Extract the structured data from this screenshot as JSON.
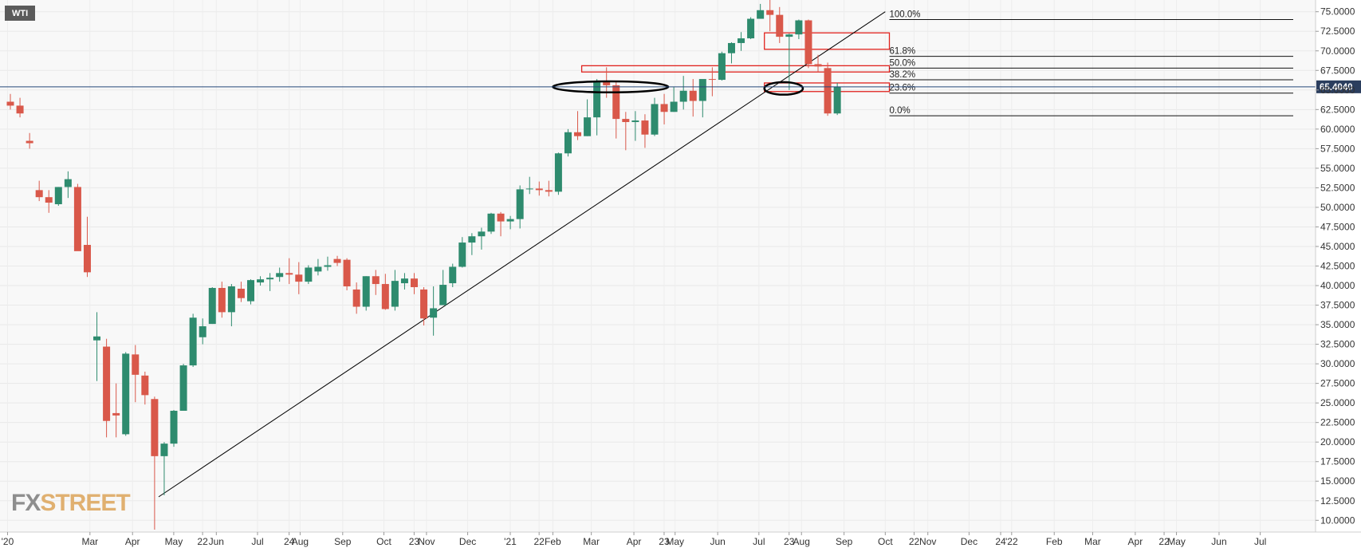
{
  "symbol": "WTI",
  "watermark": {
    "part1": "FX",
    "part2": "STREET"
  },
  "colors": {
    "up": "#2e8b6e",
    "down": "#d9584a",
    "zone": "#e0221d",
    "trend": "#000000",
    "price_line": "#24477a",
    "last_price_bg": "#2b3e5e"
  },
  "chart_data": {
    "type": "candlestick",
    "title": "",
    "interval": "weekly",
    "y_axis": {
      "min": 8.5,
      "max": 76.5,
      "ticks": [
        10,
        12.5,
        15,
        17.5,
        20,
        22.5,
        25,
        27.5,
        30,
        32.5,
        35,
        37.5,
        40,
        42.5,
        45,
        47.5,
        50,
        52.5,
        55,
        57.5,
        60,
        62.5,
        65,
        67.5,
        70,
        72.5,
        75
      ],
      "tick_labels": [
        "10.0000",
        "12.5000",
        "15.0000",
        "17.5000",
        "20.0000",
        "22.5000",
        "25.0000",
        "27.5000",
        "30.0000",
        "32.5000",
        "35.0000",
        "37.5000",
        "40.0000",
        "42.5000",
        "45.0000",
        "47.5000",
        "50.0000",
        "52.5000",
        "55.0000",
        "57.5000",
        "60.0000",
        "62.5000",
        "65.0000",
        "67.5000",
        "70.0000",
        "72.5000",
        "75.0000"
      ]
    },
    "x_axis": {
      "start": "2019-12-30",
      "end": "2022-07-25",
      "ticks": [
        {
          "date": "2020-01-01",
          "label": "'20"
        },
        {
          "date": "2020-03-01",
          "label": "Mar"
        },
        {
          "date": "2020-04-01",
          "label": "Apr"
        },
        {
          "date": "2020-05-01",
          "label": "May"
        },
        {
          "date": "2020-05-22",
          "label": "22"
        },
        {
          "date": "2020-06-01",
          "label": "Jun"
        },
        {
          "date": "2020-07-01",
          "label": "Jul"
        },
        {
          "date": "2020-07-24",
          "label": "24"
        },
        {
          "date": "2020-08-01",
          "label": "Aug"
        },
        {
          "date": "2020-09-01",
          "label": "Sep"
        },
        {
          "date": "2020-10-01",
          "label": "Oct"
        },
        {
          "date": "2020-10-23",
          "label": "23"
        },
        {
          "date": "2020-11-01",
          "label": "Nov"
        },
        {
          "date": "2020-12-01",
          "label": "Dec"
        },
        {
          "date": "2021-01-01",
          "label": "'21"
        },
        {
          "date": "2021-01-22",
          "label": "22"
        },
        {
          "date": "2021-02-01",
          "label": "Feb"
        },
        {
          "date": "2021-03-01",
          "label": "Mar"
        },
        {
          "date": "2021-04-01",
          "label": "Apr"
        },
        {
          "date": "2021-04-23",
          "label": "23"
        },
        {
          "date": "2021-05-01",
          "label": "May"
        },
        {
          "date": "2021-06-01",
          "label": "Jun"
        },
        {
          "date": "2021-07-01",
          "label": "Jul"
        },
        {
          "date": "2021-07-23",
          "label": "23"
        },
        {
          "date": "2021-08-01",
          "label": "Aug"
        },
        {
          "date": "2021-09-01",
          "label": "Sep"
        },
        {
          "date": "2021-10-01",
          "label": "Oct"
        },
        {
          "date": "2021-10-22",
          "label": "22"
        },
        {
          "date": "2021-11-01",
          "label": "Nov"
        },
        {
          "date": "2021-12-01",
          "label": "Dec"
        },
        {
          "date": "2021-12-24",
          "label": "24"
        },
        {
          "date": "2022-01-01",
          "label": "'22"
        },
        {
          "date": "2022-02-01",
          "label": "Feb"
        },
        {
          "date": "2022-03-01",
          "label": "Mar"
        },
        {
          "date": "2022-04-01",
          "label": "Apr"
        },
        {
          "date": "2022-04-22",
          "label": "22"
        },
        {
          "date": "2022-05-01",
          "label": "May"
        },
        {
          "date": "2022-06-01",
          "label": "Jun"
        },
        {
          "date": "2022-07-01",
          "label": "Jul"
        }
      ]
    },
    "candles": [
      {
        "date": "2019-12-30",
        "o": 63.5,
        "h": 64.5,
        "l": 62.5,
        "c": 63.0
      },
      {
        "date": "2020-01-06",
        "o": 63.0,
        "h": 64.0,
        "l": 61.5,
        "c": 62.0
      },
      {
        "date": "2020-01-13",
        "o": 58.5,
        "h": 59.5,
        "l": 57.5,
        "c": 58.2
      },
      {
        "date": "2020-01-20",
        "o": 52.2,
        "h": 53.4,
        "l": 50.8,
        "c": 51.3
      },
      {
        "date": "2020-01-27",
        "o": 51.3,
        "h": 52.2,
        "l": 49.3,
        "c": 50.6
      },
      {
        "date": "2020-02-03",
        "o": 50.4,
        "h": 52.6,
        "l": 50.2,
        "c": 52.6
      },
      {
        "date": "2020-02-10",
        "o": 52.6,
        "h": 54.6,
        "l": 51.2,
        "c": 53.6
      },
      {
        "date": "2020-02-17",
        "o": 52.6,
        "h": 53.0,
        "l": 44.6,
        "c": 44.4
      },
      {
        "date": "2020-02-24",
        "o": 45.2,
        "h": 48.8,
        "l": 41.1,
        "c": 41.7
      },
      {
        "date": "2020-03-02",
        "o": 33.0,
        "h": 36.6,
        "l": 27.8,
        "c": 33.5
      },
      {
        "date": "2020-03-09",
        "o": 32.2,
        "h": 33.2,
        "l": 20.6,
        "c": 22.7
      },
      {
        "date": "2020-03-16",
        "o": 23.7,
        "h": 27.5,
        "l": 20.6,
        "c": 23.4
      },
      {
        "date": "2020-03-23",
        "o": 21.0,
        "h": 31.5,
        "l": 20.8,
        "c": 31.3
      },
      {
        "date": "2020-03-30",
        "o": 31.2,
        "h": 32.4,
        "l": 25.1,
        "c": 28.6
      },
      {
        "date": "2020-04-06",
        "o": 28.5,
        "h": 29.0,
        "l": 24.8,
        "c": 26.0
      },
      {
        "date": "2020-04-13",
        "o": 25.5,
        "h": 25.8,
        "l": 8.8,
        "c": 18.2
      },
      {
        "date": "2020-04-20",
        "o": 18.2,
        "h": 20.0,
        "l": 13.2,
        "c": 19.8
      },
      {
        "date": "2020-04-27",
        "o": 19.8,
        "h": 24.1,
        "l": 19.4,
        "c": 24.0
      },
      {
        "date": "2020-05-04",
        "o": 24.0,
        "h": 30.0,
        "l": 24.5,
        "c": 29.8
      },
      {
        "date": "2020-05-11",
        "o": 29.8,
        "h": 36.4,
        "l": 29.6,
        "c": 35.9
      },
      {
        "date": "2020-05-18",
        "o": 33.4,
        "h": 35.8,
        "l": 32.5,
        "c": 34.8
      },
      {
        "date": "2020-05-25",
        "o": 35.1,
        "h": 39.8,
        "l": 35.1,
        "c": 39.7
      },
      {
        "date": "2020-06-01",
        "o": 39.7,
        "h": 40.5,
        "l": 35.9,
        "c": 36.6
      },
      {
        "date": "2020-06-08",
        "o": 36.6,
        "h": 40.2,
        "l": 34.8,
        "c": 39.9
      },
      {
        "date": "2020-06-15",
        "o": 39.6,
        "h": 40.5,
        "l": 37.9,
        "c": 38.4
      },
      {
        "date": "2020-06-22",
        "o": 38.0,
        "h": 40.8,
        "l": 37.6,
        "c": 40.7
      },
      {
        "date": "2020-06-29",
        "o": 40.4,
        "h": 41.2,
        "l": 40.0,
        "c": 40.8
      },
      {
        "date": "2020-07-06",
        "o": 40.8,
        "h": 41.6,
        "l": 39.3,
        "c": 41.0
      },
      {
        "date": "2020-07-13",
        "o": 41.1,
        "h": 42.3,
        "l": 40.5,
        "c": 41.6
      },
      {
        "date": "2020-07-20",
        "o": 41.6,
        "h": 43.5,
        "l": 40.2,
        "c": 41.4
      },
      {
        "date": "2020-07-27",
        "o": 41.4,
        "h": 43.0,
        "l": 38.9,
        "c": 40.5
      },
      {
        "date": "2020-08-03",
        "o": 40.5,
        "h": 42.6,
        "l": 40.2,
        "c": 42.3
      },
      {
        "date": "2020-08-10",
        "o": 41.8,
        "h": 43.4,
        "l": 41.3,
        "c": 42.4
      },
      {
        "date": "2020-08-17",
        "o": 42.4,
        "h": 43.7,
        "l": 41.9,
        "c": 42.6
      },
      {
        "date": "2020-08-24",
        "o": 43.4,
        "h": 43.8,
        "l": 42.5,
        "c": 42.9
      },
      {
        "date": "2020-08-31",
        "o": 43.3,
        "h": 43.5,
        "l": 39.4,
        "c": 39.9
      },
      {
        "date": "2020-09-07",
        "o": 39.5,
        "h": 40.4,
        "l": 36.4,
        "c": 37.3
      },
      {
        "date": "2020-09-14",
        "o": 37.3,
        "h": 41.2,
        "l": 36.8,
        "c": 41.2
      },
      {
        "date": "2020-09-21",
        "o": 41.2,
        "h": 42.0,
        "l": 38.8,
        "c": 40.2
      },
      {
        "date": "2020-09-28",
        "o": 40.2,
        "h": 41.5,
        "l": 36.9,
        "c": 37.0
      },
      {
        "date": "2020-10-05",
        "o": 37.3,
        "h": 42.0,
        "l": 36.8,
        "c": 40.6
      },
      {
        "date": "2020-10-12",
        "o": 40.3,
        "h": 41.6,
        "l": 39.5,
        "c": 40.9
      },
      {
        "date": "2020-10-19",
        "o": 40.9,
        "h": 41.6,
        "l": 38.9,
        "c": 39.8
      },
      {
        "date": "2020-10-26",
        "o": 39.5,
        "h": 39.8,
        "l": 34.9,
        "c": 35.8
      },
      {
        "date": "2020-11-02",
        "o": 35.9,
        "h": 39.9,
        "l": 33.6,
        "c": 37.1
      },
      {
        "date": "2020-11-09",
        "o": 37.5,
        "h": 42.0,
        "l": 37.5,
        "c": 40.1
      },
      {
        "date": "2020-11-16",
        "o": 40.3,
        "h": 42.8,
        "l": 39.8,
        "c": 42.4
      },
      {
        "date": "2020-11-23",
        "o": 42.4,
        "h": 46.2,
        "l": 42.3,
        "c": 45.5
      },
      {
        "date": "2020-11-30",
        "o": 45.5,
        "h": 46.7,
        "l": 43.9,
        "c": 46.3
      },
      {
        "date": "2020-12-07",
        "o": 46.3,
        "h": 47.4,
        "l": 44.6,
        "c": 46.9
      },
      {
        "date": "2020-12-14",
        "o": 46.9,
        "h": 49.3,
        "l": 46.6,
        "c": 49.2
      },
      {
        "date": "2020-12-21",
        "o": 49.2,
        "h": 49.4,
        "l": 46.3,
        "c": 48.2
      },
      {
        "date": "2020-12-28",
        "o": 48.2,
        "h": 48.9,
        "l": 47.2,
        "c": 48.5
      },
      {
        "date": "2021-01-04",
        "o": 48.5,
        "h": 52.8,
        "l": 47.3,
        "c": 52.3
      },
      {
        "date": "2021-01-11",
        "o": 52.3,
        "h": 53.9,
        "l": 51.7,
        "c": 52.4
      },
      {
        "date": "2021-01-18",
        "o": 52.4,
        "h": 53.3,
        "l": 51.5,
        "c": 52.2
      },
      {
        "date": "2021-01-25",
        "o": 52.2,
        "h": 53.4,
        "l": 51.4,
        "c": 52.0
      },
      {
        "date": "2021-02-01",
        "o": 52.0,
        "h": 57.0,
        "l": 51.6,
        "c": 56.9
      },
      {
        "date": "2021-02-08",
        "o": 56.9,
        "h": 60.0,
        "l": 56.5,
        "c": 59.6
      },
      {
        "date": "2021-02-15",
        "o": 59.6,
        "h": 62.3,
        "l": 58.6,
        "c": 59.1
      },
      {
        "date": "2021-02-22",
        "o": 59.1,
        "h": 63.8,
        "l": 59.1,
        "c": 61.5
      },
      {
        "date": "2021-03-01",
        "o": 61.5,
        "h": 66.4,
        "l": 59.2,
        "c": 66.0
      },
      {
        "date": "2021-03-08",
        "o": 66.0,
        "h": 67.9,
        "l": 64.0,
        "c": 65.6
      },
      {
        "date": "2021-03-15",
        "o": 65.6,
        "h": 66.1,
        "l": 58.8,
        "c": 61.3
      },
      {
        "date": "2021-03-22",
        "o": 61.3,
        "h": 62.2,
        "l": 57.3,
        "c": 60.9
      },
      {
        "date": "2021-03-29",
        "o": 60.9,
        "h": 62.3,
        "l": 58.5,
        "c": 61.1
      },
      {
        "date": "2021-04-05",
        "o": 61.1,
        "h": 61.9,
        "l": 57.6,
        "c": 59.3
      },
      {
        "date": "2021-04-12",
        "o": 59.3,
        "h": 64.0,
        "l": 59.1,
        "c": 63.2
      },
      {
        "date": "2021-04-19",
        "o": 63.2,
        "h": 64.5,
        "l": 60.6,
        "c": 62.2
      },
      {
        "date": "2021-04-26",
        "o": 62.2,
        "h": 65.4,
        "l": 62.2,
        "c": 63.5
      },
      {
        "date": "2021-05-03",
        "o": 63.5,
        "h": 66.8,
        "l": 62.5,
        "c": 64.9
      },
      {
        "date": "2021-05-10",
        "o": 64.9,
        "h": 66.4,
        "l": 61.6,
        "c": 63.6
      },
      {
        "date": "2021-05-17",
        "o": 63.6,
        "h": 66.2,
        "l": 61.5,
        "c": 66.4
      },
      {
        "date": "2021-05-24",
        "o": 66.4,
        "h": 67.9,
        "l": 64.2,
        "c": 66.3
      },
      {
        "date": "2021-05-31",
        "o": 66.3,
        "h": 69.9,
        "l": 66.2,
        "c": 69.7
      },
      {
        "date": "2021-06-07",
        "o": 69.7,
        "h": 71.1,
        "l": 68.4,
        "c": 71.0
      },
      {
        "date": "2021-06-14",
        "o": 71.0,
        "h": 72.4,
        "l": 70.0,
        "c": 71.6
      },
      {
        "date": "2021-06-21",
        "o": 71.6,
        "h": 74.3,
        "l": 71.5,
        "c": 74.1
      },
      {
        "date": "2021-06-28",
        "o": 74.1,
        "h": 76.0,
        "l": 74.1,
        "c": 75.2
      },
      {
        "date": "2021-07-05",
        "o": 75.2,
        "h": 76.9,
        "l": 72.5,
        "c": 74.6
      },
      {
        "date": "2021-07-12",
        "o": 74.6,
        "h": 75.6,
        "l": 71.0,
        "c": 71.8
      },
      {
        "date": "2021-07-19",
        "o": 71.8,
        "h": 72.2,
        "l": 65.0,
        "c": 72.1
      },
      {
        "date": "2021-07-26",
        "o": 72.1,
        "h": 74.0,
        "l": 71.5,
        "c": 73.9
      },
      {
        "date": "2021-08-02",
        "o": 73.9,
        "h": 74.0,
        "l": 67.8,
        "c": 68.3
      },
      {
        "date": "2021-08-09",
        "o": 68.3,
        "h": 69.5,
        "l": 67.3,
        "c": 68.0
      },
      {
        "date": "2021-08-16",
        "o": 67.8,
        "h": 68.5,
        "l": 61.7,
        "c": 62.0
      },
      {
        "date": "2021-08-23",
        "o": 62.0,
        "h": 65.9,
        "l": 61.8,
        "c": 65.4
      }
    ],
    "fibonacci": {
      "levels": [
        {
          "label": "100.0%",
          "price": 74.0
        },
        {
          "label": "61.8%",
          "price": 69.3
        },
        {
          "label": "50.0%",
          "price": 67.8
        },
        {
          "label": "38.2%",
          "price": 66.3
        },
        {
          "label": "23.6%",
          "price": 64.6
        },
        {
          "label": "0.0%",
          "price": 61.7
        }
      ],
      "start_date": "2021-10-04",
      "end_date": "2022-07-25"
    },
    "zones": [
      {
        "from": "2021-02-22",
        "to": "2021-10-04",
        "low": 67.3,
        "high": 68.1
      },
      {
        "from": "2021-07-05",
        "to": "2021-10-04",
        "low": 70.2,
        "high": 72.3
      },
      {
        "from": "2021-07-05",
        "to": "2021-10-04",
        "low": 64.8,
        "high": 65.9
      }
    ],
    "ellipses": [
      {
        "center": "2021-03-15",
        "price": 65.4,
        "rx_days": 42,
        "ry_price": 0.7
      },
      {
        "center": "2021-07-19",
        "price": 65.2,
        "rx_days": 14,
        "ry_price": 0.8
      }
    ],
    "trendline": {
      "x1": "2020-04-20",
      "y1": 13.0,
      "x2": "2021-10-01",
      "y2": 75.0
    },
    "last_price": {
      "value": 65.404,
      "label": "65.4040"
    }
  }
}
